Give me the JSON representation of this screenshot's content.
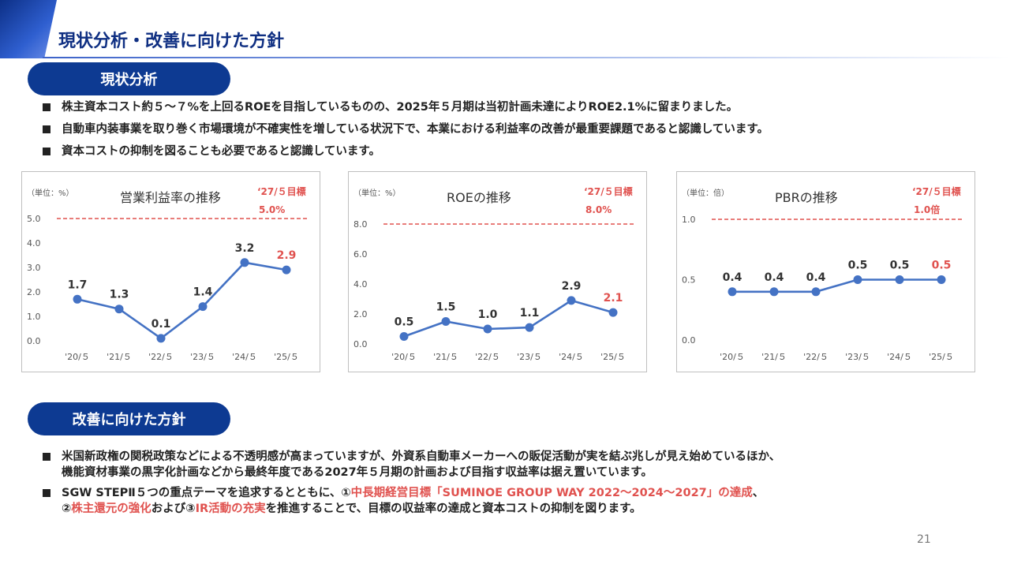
{
  "header": {
    "title": "現状分析・改善に向けた方針"
  },
  "section1": {
    "label": "現状分析",
    "bullets": [
      [
        "株主資本コスト約５～７%を上回るROEを目指しているものの、2025年５月期は当初計画未達によりROE2.1%に留まりました。"
      ],
      [
        "自動車内装事業を取り巻く市場環境が不確実性を増している状況下で、本業における利益率の改善が最重要課題であると認識しています。"
      ],
      [
        "資本コストの抑制を図ることも必要であると認識しています。"
      ]
    ]
  },
  "section2": {
    "label": "改善に向けた方針",
    "bullet1": [
      "米国新政権の関税政策などによる不透明感が高まっていますが、外資系自動車メーカーへの販促活動が実を結ぶ兆しが見え始めているほか、",
      "機能資材事業の黒字化計画などから最終年度である2027年５月期の計画および目指す収益率は据え置いています。"
    ],
    "bullet2": {
      "l1_a": "SGW STEPⅡ５つの重点テーマを追求するとともに、①",
      "l1_b": "中長期経営目標「SUMINOE GROUP WAY 2022～2024～2027」の達成",
      "l1_c": "、",
      "l2_a": "②",
      "l2_b": "株主還元の強化",
      "l2_c": "および③",
      "l2_d": "IR活動の充実",
      "l2_e": "を推進することで、目標の収益率の達成と資本コストの抑制を図ります。"
    }
  },
  "colors": {
    "series": "#4472c4",
    "target": "#e0524f",
    "navy": "#0d3a92"
  },
  "chart_data": [
    {
      "type": "line",
      "title": "営業利益率の推移",
      "unit_label": "（単位：%）",
      "target_label": "‘27/５目標",
      "target_value_label": "5.0%",
      "target": 5.0,
      "categories": [
        "'20/５",
        "'21/５",
        "'22/５",
        "'23/５",
        "'24/５",
        "'25/５"
      ],
      "values": [
        1.7,
        1.3,
        0.1,
        1.4,
        3.2,
        2.9
      ],
      "value_labels": [
        "1.7",
        "1.3",
        "0.1",
        "1.4",
        "3.2",
        "2.9"
      ],
      "yticks": [
        "0.0",
        "1.0",
        "2.0",
        "3.0",
        "4.0",
        "5.0"
      ],
      "ylim": [
        0,
        5
      ]
    },
    {
      "type": "line",
      "title": "ROEの推移",
      "unit_label": "（単位：%）",
      "target_label": "‘27/５目標",
      "target_value_label": "8.0%",
      "target": 8.0,
      "categories": [
        "'20/５",
        "'21/５",
        "'22/５",
        "'23/５",
        "'24/５",
        "'25/５"
      ],
      "values": [
        0.5,
        1.5,
        1.0,
        1.1,
        2.9,
        2.1
      ],
      "value_labels": [
        "0.5",
        "1.5",
        "1.0",
        "1.1",
        "2.9",
        "2.1"
      ],
      "yticks": [
        "0.0",
        "2.0",
        "4.0",
        "6.0",
        "8.0"
      ],
      "ylim": [
        0,
        8
      ]
    },
    {
      "type": "line",
      "title": "PBRの推移",
      "unit_label": "（単位：倍）",
      "target_label": "‘27/５目標",
      "target_value_label": "1.0倍",
      "target": 1.0,
      "categories": [
        "'20/５",
        "'21/５",
        "'22/５",
        "'23/５",
        "'24/５",
        "'25/５"
      ],
      "values": [
        0.4,
        0.4,
        0.4,
        0.5,
        0.5,
        0.5
      ],
      "value_labels": [
        "0.4",
        "0.4",
        "0.4",
        "0.5",
        "0.5",
        "0.5"
      ],
      "yticks": [
        "0.0",
        "0.5",
        "1.0"
      ],
      "ylim": [
        0,
        1
      ]
    }
  ],
  "footer": {
    "page_number": "21"
  }
}
